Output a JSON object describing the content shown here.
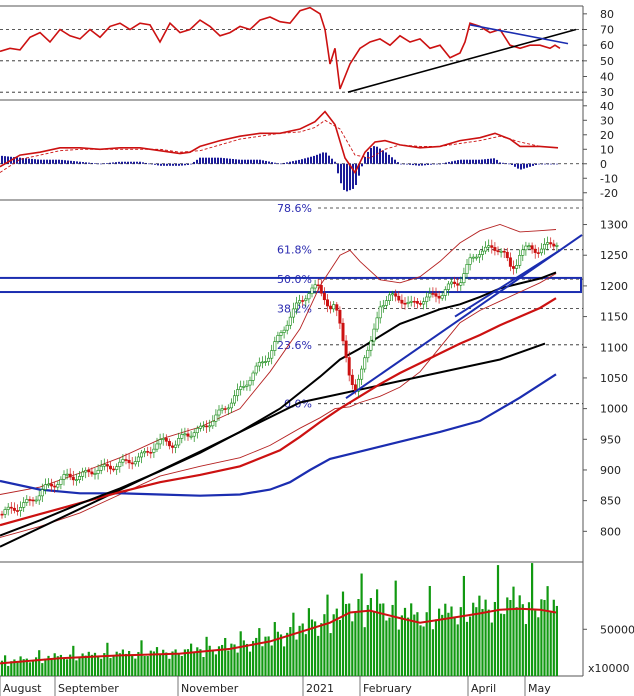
{
  "colors": {
    "background": "#ffffff",
    "grid": "#000000",
    "rsi_line": "#cc1111",
    "macd_line": "#cc1111",
    "histogram": "#1b1b99",
    "candle_up": "#118811",
    "candle_down": "#cc1111",
    "ma_black": "#000000",
    "ma_red": "#cc1111",
    "ma_blue": "#1b2db0",
    "bollinger": "#b52222",
    "trendline_blue": "#1b2db0",
    "zone_box": "#1b2db0",
    "volume_bar": "#119911"
  },
  "chart_data": [
    {
      "type": "line",
      "name": "rsi-panel",
      "ylim": [
        25,
        85
      ],
      "yticks": [
        30,
        40,
        50,
        60,
        70,
        80
      ],
      "hlines": [
        30,
        50,
        70
      ],
      "x": [
        0,
        10,
        20,
        30,
        40,
        50,
        60,
        70,
        80,
        90,
        100,
        110,
        120,
        130,
        140,
        150,
        160,
        170,
        180,
        190,
        200,
        210,
        220,
        230,
        240,
        250,
        260,
        270,
        280,
        290,
        300,
        310,
        320,
        325,
        330,
        335,
        340,
        350,
        360,
        370,
        380,
        390,
        400,
        410,
        420,
        430,
        440,
        450,
        460,
        465,
        470,
        480,
        490,
        500,
        510,
        520,
        530,
        540,
        550,
        555,
        560
      ],
      "values": [
        56,
        58,
        57,
        65,
        68,
        62,
        70,
        66,
        64,
        70,
        65,
        72,
        74,
        70,
        74,
        73,
        62,
        74,
        68,
        70,
        76,
        72,
        66,
        68,
        72,
        70,
        76,
        78,
        75,
        74,
        82,
        84,
        80,
        70,
        48,
        58,
        32,
        48,
        58,
        62,
        64,
        60,
        66,
        62,
        64,
        58,
        60,
        52,
        55,
        62,
        74,
        72,
        68,
        70,
        60,
        58,
        60,
        60,
        58,
        60,
        58
      ],
      "trendlines": [
        {
          "x": [
            348,
            576
          ],
          "y": [
            30,
            70
          ]
        },
        {
          "x": [
            470,
            568
          ],
          "y": [
            73,
            61
          ]
        }
      ]
    },
    {
      "type": "line",
      "name": "macd-panel",
      "ylim": [
        -25,
        44
      ],
      "yticks": [
        -20,
        -10,
        0,
        10,
        20,
        30,
        40
      ],
      "macd": {
        "x": [
          0,
          20,
          40,
          60,
          80,
          100,
          120,
          140,
          160,
          180,
          190,
          200,
          220,
          240,
          260,
          280,
          300,
          315,
          325,
          335,
          345,
          355,
          365,
          375,
          385,
          400,
          420,
          440,
          460,
          480,
          495,
          510,
          520,
          540,
          558
        ],
        "values": [
          -2,
          6,
          8,
          11,
          11,
          10,
          11,
          11,
          9,
          7,
          8,
          12,
          16,
          19,
          21,
          21,
          24,
          29,
          36,
          27,
          4,
          -6,
          8,
          15,
          16,
          13,
          11,
          12,
          16,
          18,
          21,
          17,
          12,
          12,
          11
        ]
      },
      "signal": {
        "x": [
          0,
          20,
          40,
          60,
          80,
          100,
          120,
          140,
          160,
          180,
          200,
          220,
          240,
          260,
          280,
          300,
          315,
          325,
          340,
          355,
          370,
          385,
          400,
          420,
          440,
          460,
          480,
          500,
          520,
          540,
          558
        ],
        "values": [
          -6,
          3,
          6,
          9,
          10,
          10,
          10,
          10,
          10,
          8,
          9,
          13,
          17,
          19,
          21,
          22,
          25,
          30,
          24,
          6,
          4,
          10,
          13,
          12,
          12,
          14,
          16,
          19,
          15,
          12,
          11
        ]
      }
    },
    {
      "type": "candlestick",
      "name": "price-panel",
      "ylim": [
        750,
        1340
      ],
      "yticks": [
        800,
        850,
        900,
        950,
        1000,
        1050,
        1100,
        1150,
        1200,
        1250,
        1300
      ],
      "fibonacci": [
        {
          "label": "78.6%",
          "value": 1327
        },
        {
          "label": "61.8%",
          "value": 1259
        },
        {
          "label": "50.0%",
          "value": 1211
        },
        {
          "label": "38.2%",
          "value": 1163
        },
        {
          "label": "23.6%",
          "value": 1104
        },
        {
          "label": "0.0%",
          "value": 1008
        }
      ],
      "close": {
        "x": [
          0,
          15,
          30,
          45,
          55,
          65,
          80,
          95,
          110,
          125,
          140,
          155,
          165,
          175,
          185,
          200,
          215,
          230,
          245,
          260,
          270,
          280,
          290,
          300,
          310,
          318,
          325,
          330,
          335,
          340,
          345,
          350,
          355,
          360,
          365,
          370,
          375,
          380,
          390,
          400,
          410,
          420,
          430,
          440,
          450,
          460,
          470,
          480,
          490,
          500,
          505,
          510,
          515,
          520,
          530,
          540,
          550,
          558
        ],
        "values": [
          828,
          838,
          848,
          870,
          878,
          888,
          890,
          900,
          905,
          912,
          920,
          940,
          948,
          940,
          958,
          965,
          985,
          1010,
          1040,
          1072,
          1090,
          1120,
          1150,
          1175,
          1192,
          1198,
          1182,
          1160,
          1165,
          1140,
          1100,
          1045,
          1020,
          1060,
          1090,
          1100,
          1130,
          1170,
          1182,
          1180,
          1168,
          1176,
          1182,
          1186,
          1200,
          1208,
          1240,
          1258,
          1260,
          1262,
          1250,
          1228,
          1232,
          1255,
          1262,
          1258,
          1268,
          1272
        ]
      },
      "ma_black": {
        "x": [
          0,
          40,
          80,
          120,
          160,
          200,
          240,
          280,
          320,
          340,
          360,
          380,
          400,
          420,
          440,
          460,
          480,
          500,
          520,
          540,
          556
        ],
        "values": [
          793,
          818,
          845,
          870,
          898,
          928,
          962,
          1000,
          1052,
          1080,
          1098,
          1118,
          1138,
          1150,
          1162,
          1170,
          1182,
          1196,
          1204,
          1212,
          1222
        ]
      },
      "ma_red": {
        "x": [
          0,
          40,
          80,
          120,
          160,
          200,
          240,
          280,
          300,
          320,
          340,
          360,
          380,
          400,
          420,
          440,
          460,
          480,
          500,
          520,
          540,
          556
        ],
        "values": [
          810,
          828,
          846,
          864,
          880,
          892,
          906,
          932,
          954,
          978,
          1000,
          1020,
          1040,
          1058,
          1074,
          1090,
          1106,
          1120,
          1136,
          1150,
          1164,
          1180
        ]
      },
      "ma_black2": {
        "x": [
          0,
          100,
          200,
          300,
          400,
          500,
          545
        ],
        "values": [
          775,
          852,
          930,
          1010,
          1045,
          1080,
          1106
        ]
      },
      "ma_blue": {
        "x": [
          0,
          40,
          80,
          120,
          160,
          200,
          240,
          270,
          290,
          310,
          330,
          360,
          400,
          440,
          480,
          520,
          556
        ],
        "values": [
          882,
          868,
          862,
          862,
          860,
          858,
          860,
          868,
          880,
          900,
          918,
          930,
          946,
          962,
          980,
          1018,
          1056
        ]
      },
      "boll_upper": {
        "x": [
          0,
          40,
          80,
          120,
          160,
          200,
          240,
          270,
          300,
          320,
          340,
          350,
          360,
          380,
          400,
          420,
          440,
          460,
          480,
          500,
          520,
          540,
          556
        ],
        "values": [
          860,
          872,
          895,
          920,
          950,
          970,
          1000,
          1060,
          1130,
          1200,
          1250,
          1258,
          1240,
          1210,
          1205,
          1215,
          1240,
          1270,
          1290,
          1300,
          1288,
          1290,
          1292
        ]
      },
      "boll_lower": {
        "x": [
          0,
          40,
          80,
          120,
          160,
          200,
          240,
          270,
          300,
          320,
          335,
          350,
          360,
          380,
          400,
          420,
          440,
          460,
          480,
          500,
          520,
          540,
          556
        ],
        "values": [
          790,
          808,
          830,
          860,
          890,
          906,
          920,
          940,
          968,
          985,
          1000,
          1003,
          1010,
          1020,
          1035,
          1060,
          1100,
          1140,
          1160,
          1175,
          1190,
          1205,
          1220
        ]
      },
      "trendlines": [
        {
          "x": [
            346,
            582
          ],
          "y": [
            1017,
            1283
          ]
        },
        {
          "x": [
            455,
            560
          ],
          "y": [
            1150,
            1258
          ]
        }
      ],
      "zone": {
        "low": 1190,
        "high": 1213
      }
    },
    {
      "type": "bar",
      "name": "volume-panel",
      "ylim": [
        0,
        122000
      ],
      "yticks": [
        50000
      ],
      "ytick_labels": [
        "50000"
      ],
      "unit_label": "x10000",
      "volume_ma": {
        "x": [
          0,
          60,
          120,
          180,
          230,
          270,
          300,
          330,
          350,
          370,
          400,
          420,
          450,
          480,
          500,
          520,
          540,
          556
        ],
        "values": [
          13500,
          19000,
          22000,
          24000,
          29000,
          37000,
          47000,
          57000,
          68000,
          70000,
          62000,
          57000,
          62000,
          67000,
          71000,
          72000,
          71000,
          68000
        ]
      }
    }
  ],
  "x_axis": {
    "labels": [
      "August",
      "September",
      "November",
      "2021",
      "February",
      "April",
      "May"
    ]
  }
}
